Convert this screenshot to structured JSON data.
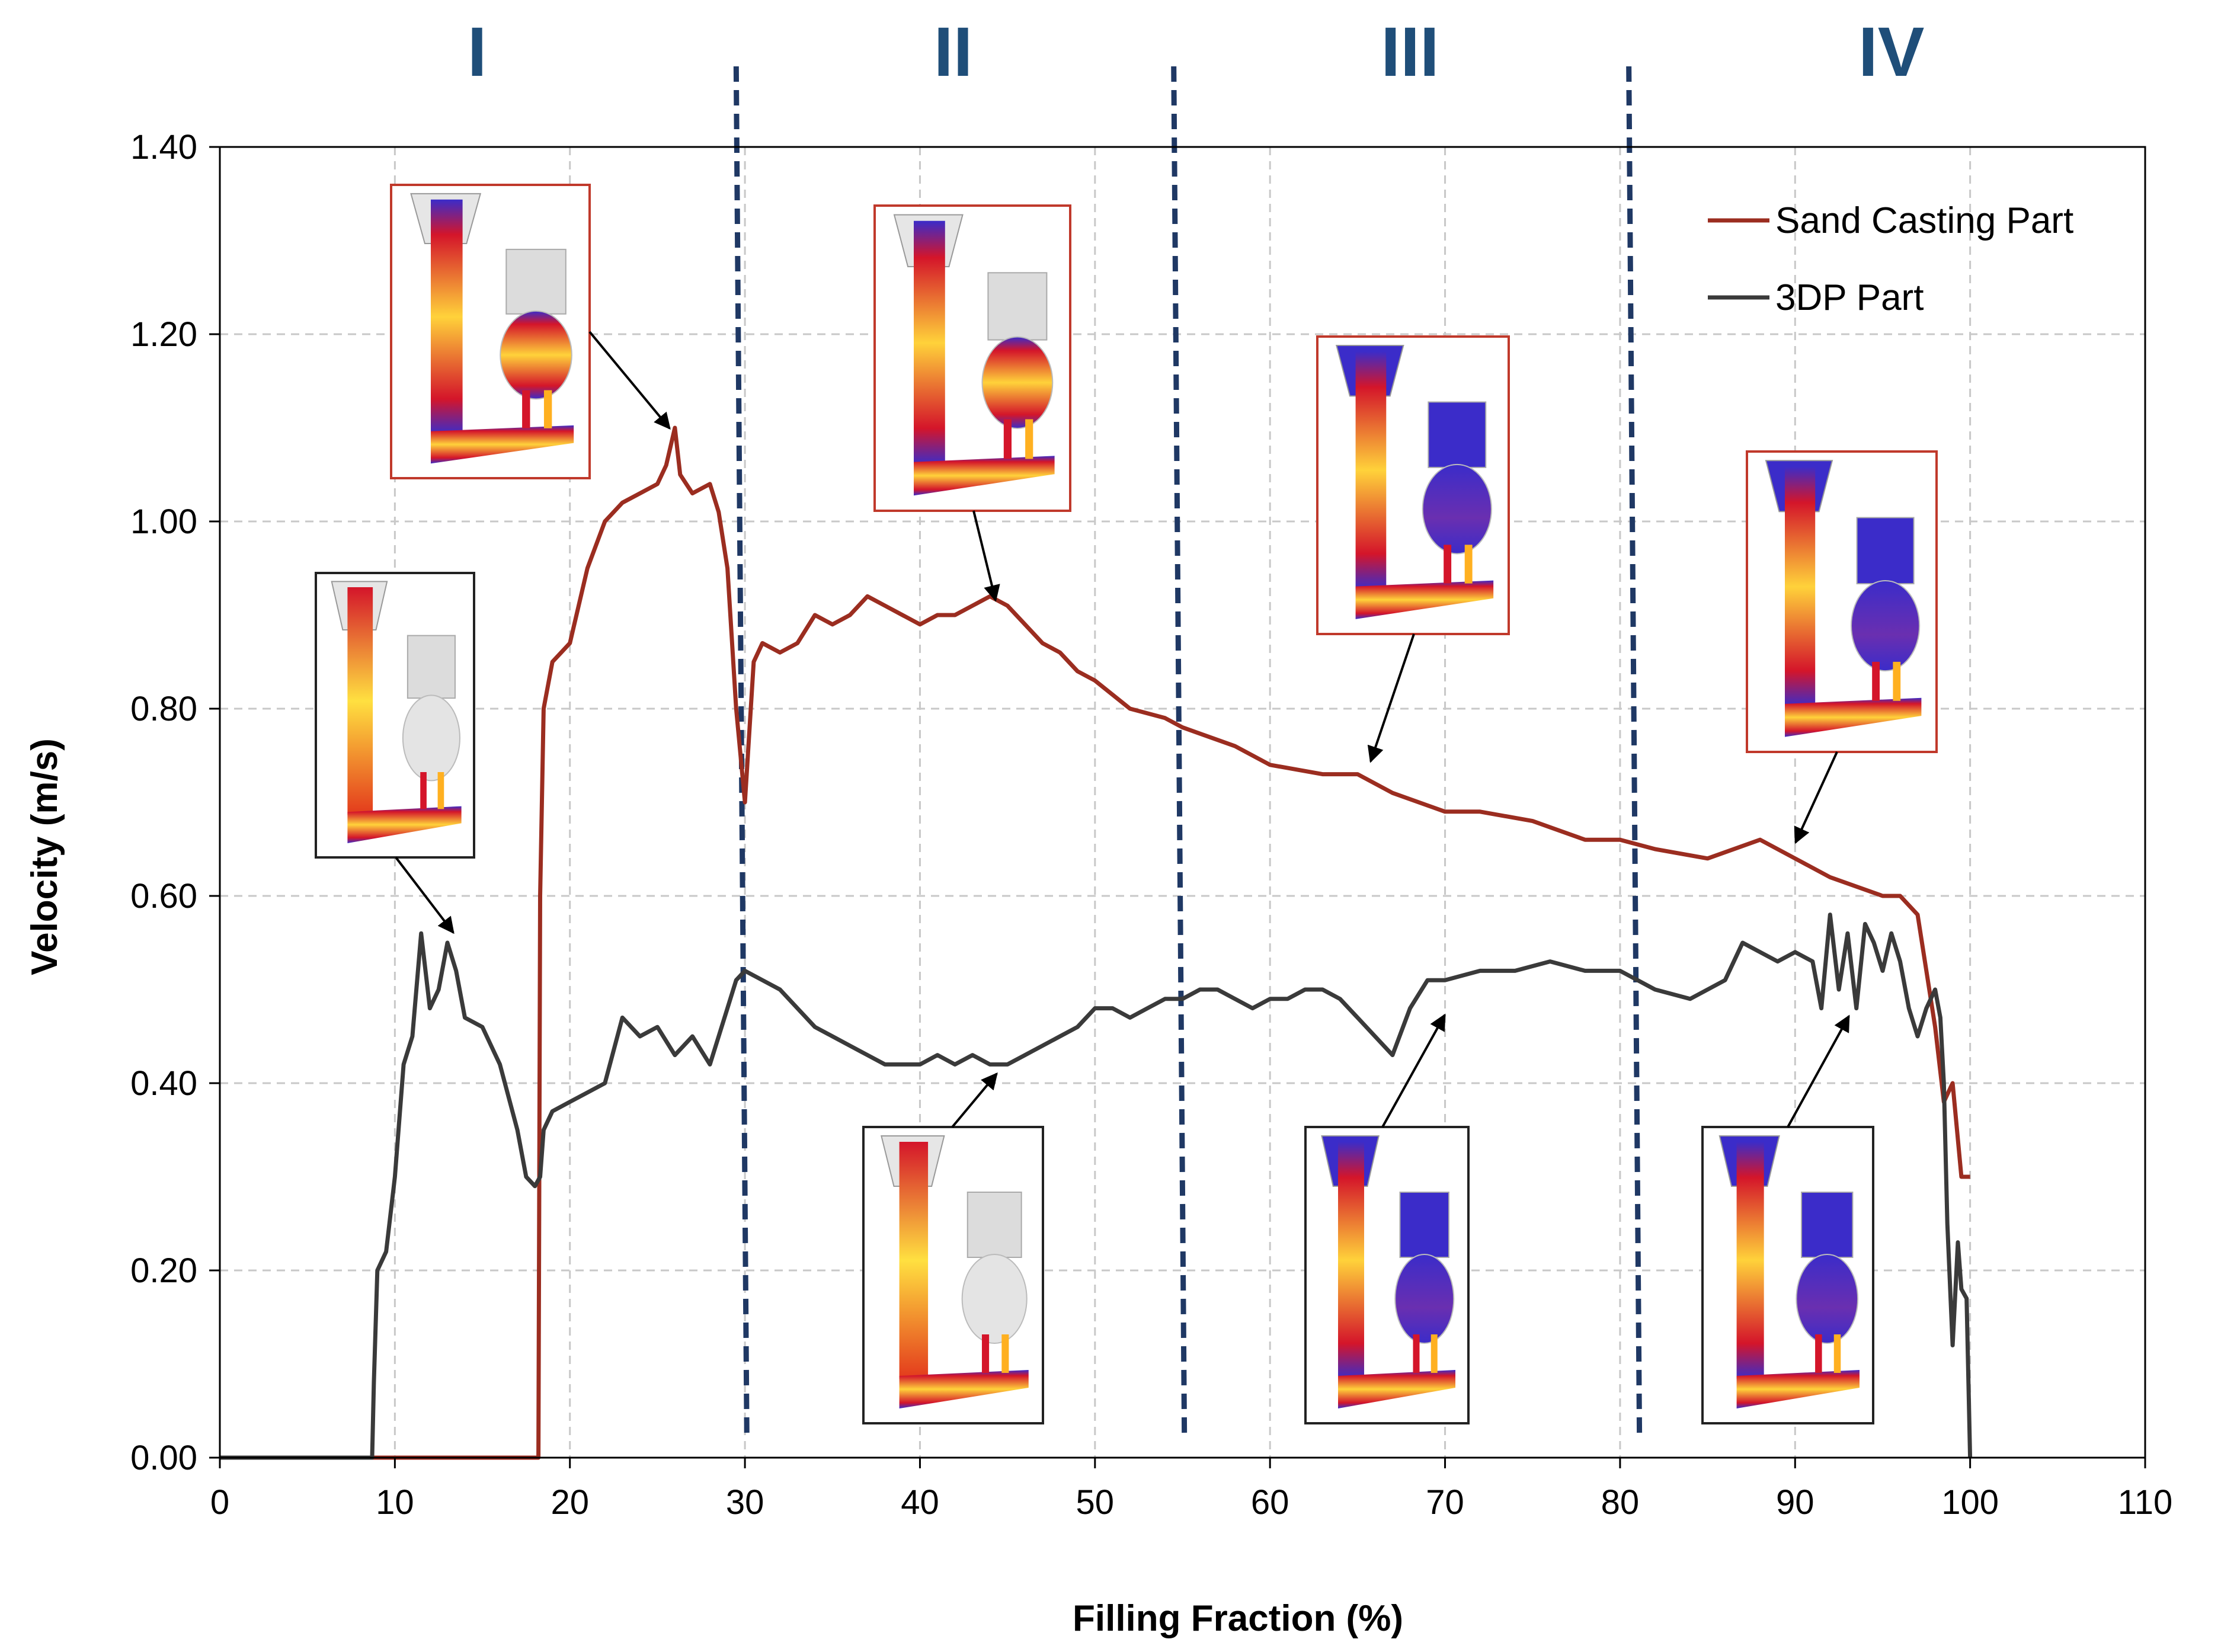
{
  "chart_data": {
    "type": "line",
    "title": "",
    "xlabel": "Filling Fraction (%)",
    "ylabel": "Velocity (m/s)",
    "xlim": [
      0,
      110
    ],
    "ylim": [
      0,
      1.4
    ],
    "xticks": [
      "0",
      "10",
      "20",
      "30",
      "40",
      "50",
      "60",
      "70",
      "80",
      "90",
      "100",
      "110"
    ],
    "yticks": [
      "0.00",
      "0.20",
      "0.40",
      "0.60",
      "0.80",
      "1.00",
      "1.20",
      "1.40"
    ],
    "grid": true,
    "legend_position": "top-right",
    "stage_labels": [
      "I",
      "II",
      "III",
      "IV"
    ],
    "stage_boundaries": [
      29.5,
      54.5,
      80.5
    ],
    "stage_centers": [
      14.7,
      41.9,
      68.0,
      95.5
    ],
    "series": [
      {
        "name": "Sand Casting Part",
        "color": "#9b2d20",
        "x": [
          0,
          18.2,
          18.3,
          18.5,
          19,
          19.5,
          20,
          21,
          22,
          23,
          24,
          25,
          25.5,
          26,
          26.3,
          27,
          28,
          28.5,
          29,
          29.5,
          30,
          30.5,
          31,
          32,
          33,
          34,
          35,
          36,
          37,
          38,
          39,
          40,
          41,
          42,
          43,
          44,
          45,
          46,
          47,
          48,
          49,
          50,
          52,
          54,
          55,
          58,
          60,
          63,
          65,
          67,
          70,
          72,
          75,
          78,
          80,
          82,
          85,
          88,
          90,
          92,
          95,
          96,
          97,
          98,
          98.5,
          99,
          99.5,
          100
        ],
        "y": [
          0,
          0,
          0.6,
          0.8,
          0.85,
          0.86,
          0.87,
          0.95,
          1.0,
          1.02,
          1.03,
          1.04,
          1.06,
          1.1,
          1.05,
          1.03,
          1.04,
          1.01,
          0.95,
          0.8,
          0.7,
          0.85,
          0.87,
          0.86,
          0.87,
          0.9,
          0.89,
          0.9,
          0.92,
          0.91,
          0.9,
          0.89,
          0.9,
          0.9,
          0.91,
          0.92,
          0.91,
          0.89,
          0.87,
          0.86,
          0.84,
          0.83,
          0.8,
          0.79,
          0.78,
          0.76,
          0.74,
          0.73,
          0.73,
          0.71,
          0.69,
          0.69,
          0.68,
          0.66,
          0.66,
          0.65,
          0.64,
          0.66,
          0.64,
          0.62,
          0.6,
          0.6,
          0.58,
          0.46,
          0.38,
          0.4,
          0.3,
          0.3
        ]
      },
      {
        "name": "3DP Part",
        "color": "#3a3a3a",
        "x": [
          0,
          8.7,
          8.8,
          9,
          9.5,
          10,
          10.5,
          11,
          11.5,
          12,
          12.5,
          13,
          13.5,
          14,
          15,
          16,
          17,
          17.5,
          18,
          18.3,
          18.5,
          19,
          20,
          21,
          22,
          23,
          24,
          25,
          26,
          27,
          28,
          29,
          29.5,
          30,
          31,
          32,
          33,
          34,
          35,
          36,
          37,
          38,
          39,
          40,
          41,
          42,
          43,
          44,
          45,
          46,
          47,
          48,
          49,
          50,
          51,
          52,
          53,
          54,
          55,
          56,
          57,
          58,
          59,
          60,
          61,
          62,
          63,
          64,
          65,
          66,
          67,
          68,
          69,
          70,
          72,
          74,
          76,
          78,
          80,
          82,
          84,
          86,
          87,
          88,
          89,
          90,
          91,
          91.5,
          92,
          92.5,
          93,
          93.5,
          94,
          94.5,
          95,
          95.5,
          96,
          96.5,
          97,
          97.5,
          98,
          98.3,
          98.5,
          98.7,
          99,
          99.3,
          99.5,
          99.8,
          100
        ],
        "y": [
          0,
          0,
          0.08,
          0.2,
          0.22,
          0.3,
          0.42,
          0.45,
          0.56,
          0.48,
          0.5,
          0.55,
          0.52,
          0.47,
          0.46,
          0.42,
          0.35,
          0.3,
          0.29,
          0.3,
          0.35,
          0.37,
          0.38,
          0.39,
          0.4,
          0.47,
          0.45,
          0.46,
          0.43,
          0.45,
          0.42,
          0.48,
          0.51,
          0.52,
          0.51,
          0.5,
          0.48,
          0.46,
          0.45,
          0.44,
          0.43,
          0.42,
          0.42,
          0.42,
          0.43,
          0.42,
          0.43,
          0.42,
          0.42,
          0.43,
          0.44,
          0.45,
          0.46,
          0.48,
          0.48,
          0.47,
          0.48,
          0.49,
          0.49,
          0.5,
          0.5,
          0.49,
          0.48,
          0.49,
          0.49,
          0.5,
          0.5,
          0.49,
          0.47,
          0.45,
          0.43,
          0.48,
          0.51,
          0.51,
          0.52,
          0.52,
          0.53,
          0.52,
          0.52,
          0.5,
          0.49,
          0.51,
          0.55,
          0.54,
          0.53,
          0.54,
          0.53,
          0.48,
          0.58,
          0.5,
          0.56,
          0.48,
          0.57,
          0.55,
          0.52,
          0.56,
          0.53,
          0.48,
          0.45,
          0.48,
          0.5,
          0.47,
          0.4,
          0.25,
          0.12,
          0.23,
          0.18,
          0.17,
          0
        ]
      }
    ]
  }
}
